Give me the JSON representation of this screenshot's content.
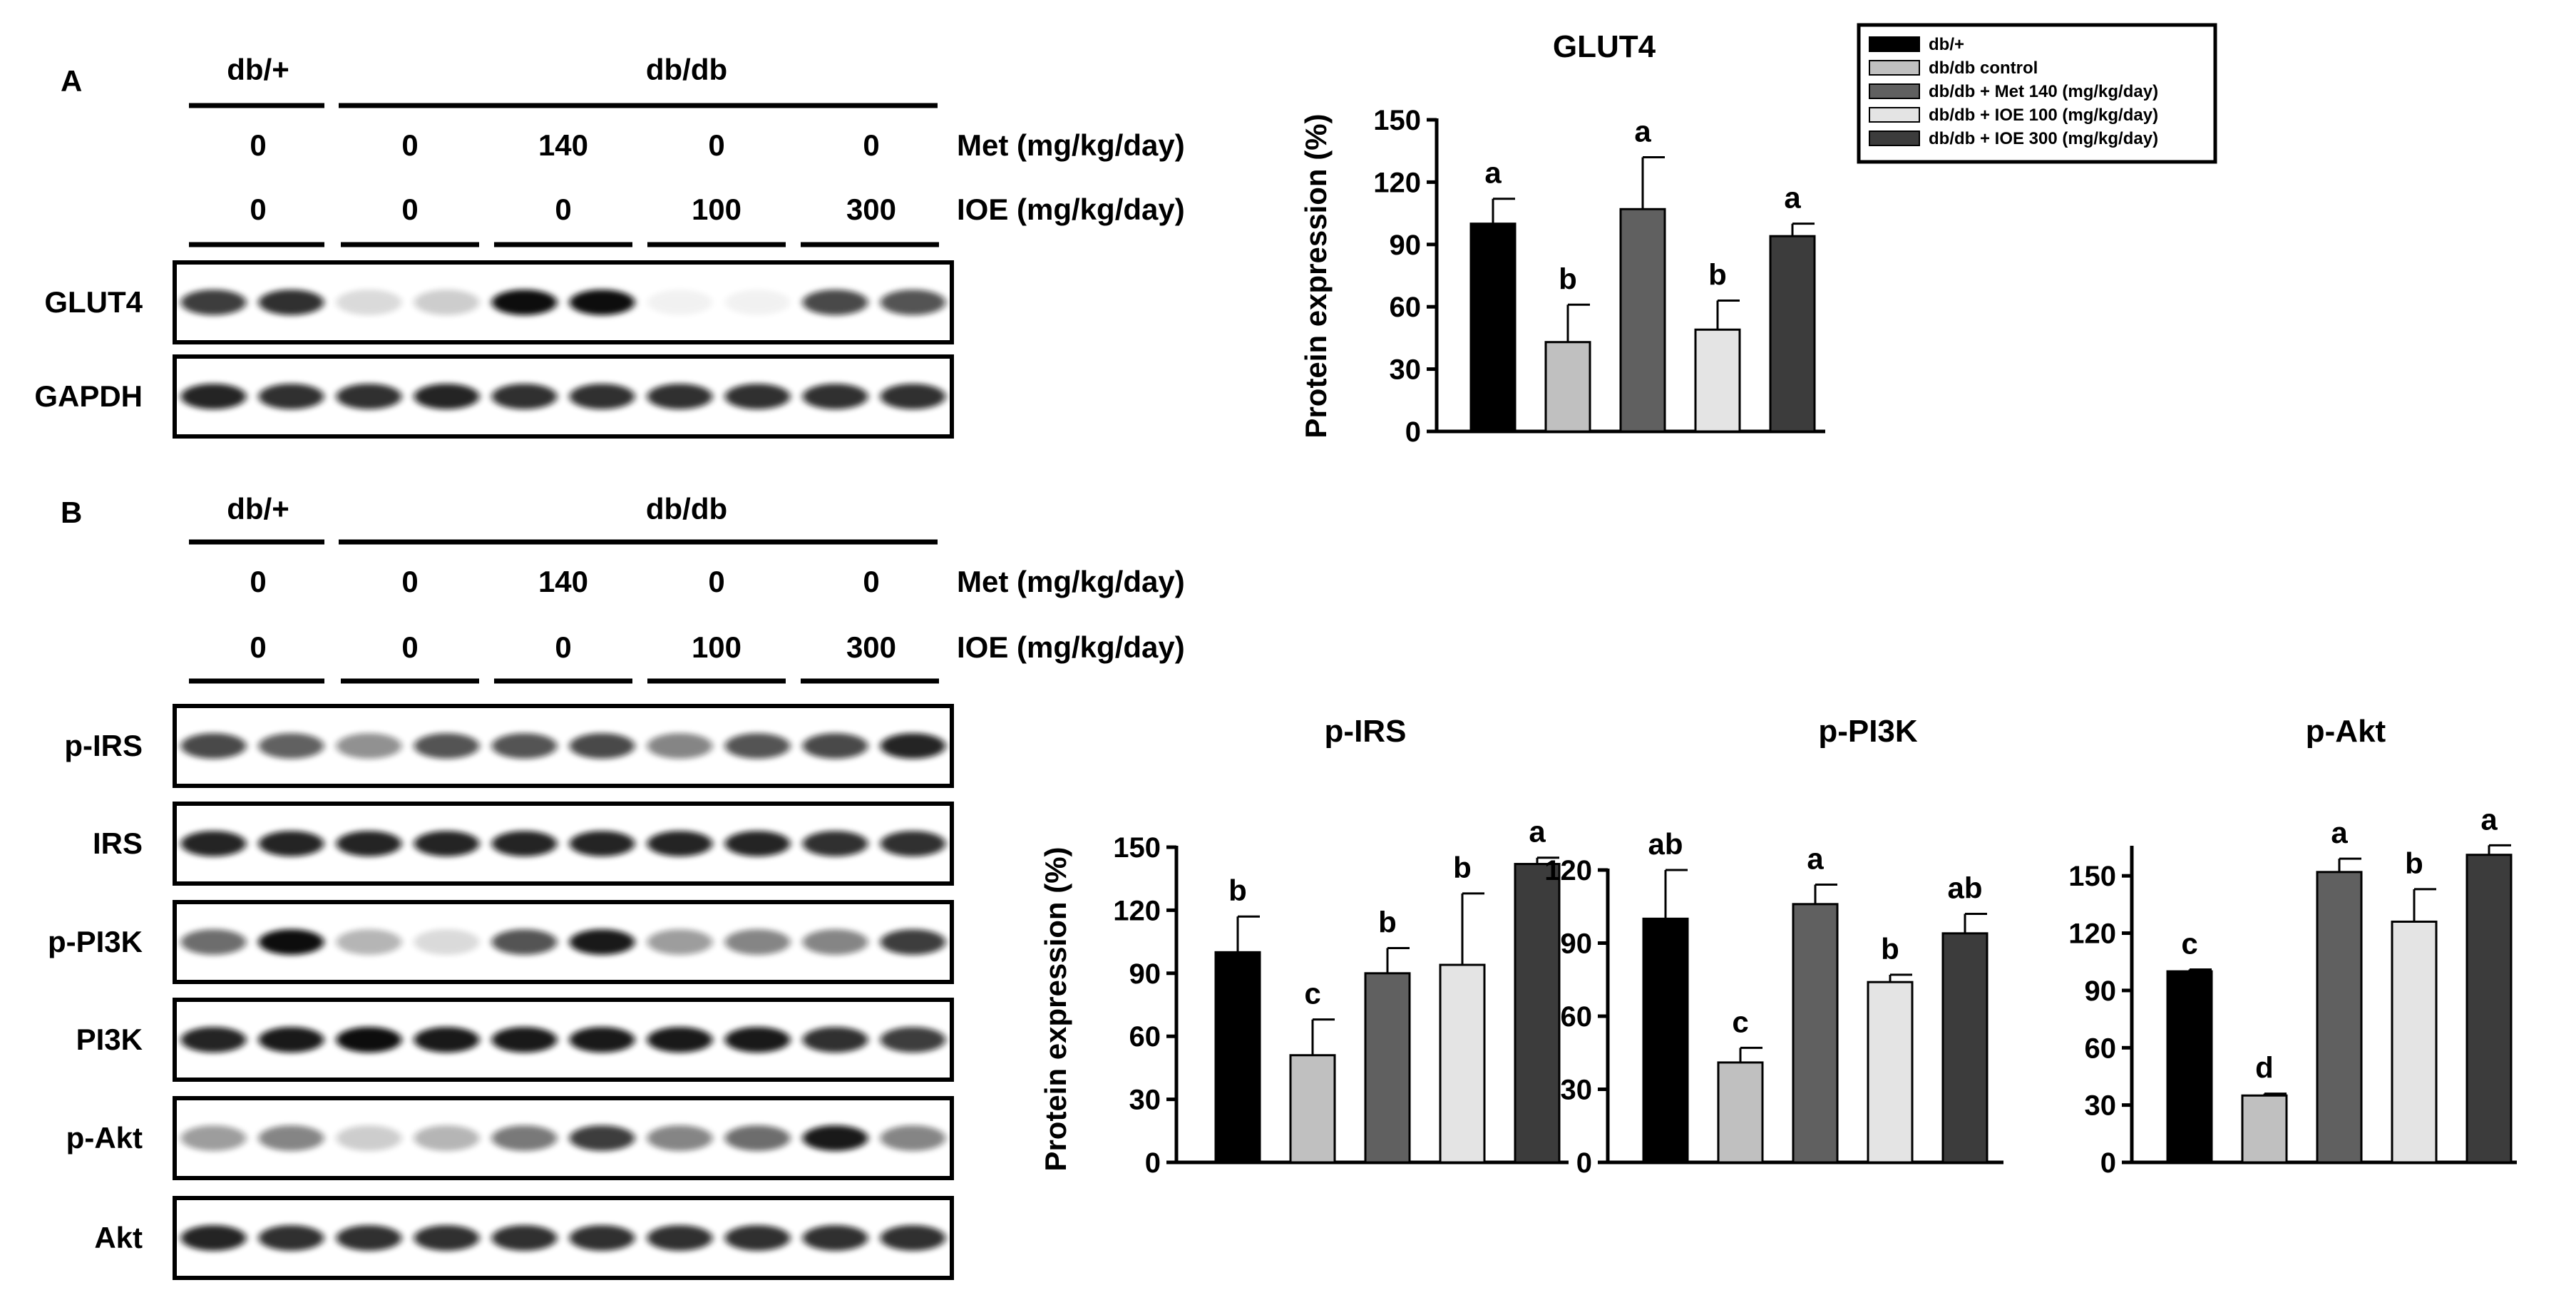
{
  "panels": {
    "A": {
      "label": "A"
    },
    "B": {
      "label": "B"
    }
  },
  "groups": {
    "ctrl": "db/+",
    "diab": "db/db"
  },
  "doses": {
    "met_label": "Met (mg/kg/day)",
    "ioe_label": "IOE (mg/kg/day)",
    "met": [
      "0",
      "0",
      "140",
      "0",
      "0"
    ],
    "ioe": [
      "0",
      "0",
      "0",
      "100",
      "300"
    ]
  },
  "blots": {
    "A": [
      {
        "label": "GLUT4",
        "intensity": [
          [
            0.8,
            0.85
          ],
          [
            0.15,
            0.2
          ],
          [
            1.0,
            1.0
          ],
          [
            0.05,
            0.05
          ],
          [
            0.75,
            0.7
          ]
        ]
      },
      {
        "label": "GAPDH",
        "intensity": [
          [
            0.9,
            0.85
          ],
          [
            0.85,
            0.9
          ],
          [
            0.85,
            0.85
          ],
          [
            0.85,
            0.85
          ],
          [
            0.85,
            0.85
          ]
        ]
      }
    ],
    "B": [
      {
        "label": "p-IRS",
        "intensity": [
          [
            0.75,
            0.65
          ],
          [
            0.45,
            0.7
          ],
          [
            0.7,
            0.75
          ],
          [
            0.5,
            0.7
          ],
          [
            0.75,
            0.9
          ]
        ]
      },
      {
        "label": "IRS",
        "intensity": [
          [
            0.9,
            0.9
          ],
          [
            0.9,
            0.9
          ],
          [
            0.9,
            0.9
          ],
          [
            0.9,
            0.9
          ],
          [
            0.85,
            0.85
          ]
        ]
      },
      {
        "label": "p-PI3K",
        "intensity": [
          [
            0.6,
            1.0
          ],
          [
            0.3,
            0.15
          ],
          [
            0.7,
            0.95
          ],
          [
            0.4,
            0.5
          ],
          [
            0.5,
            0.8
          ]
        ]
      },
      {
        "label": "PI3K",
        "intensity": [
          [
            0.9,
            0.95
          ],
          [
            1.0,
            0.95
          ],
          [
            0.95,
            0.95
          ],
          [
            0.95,
            0.95
          ],
          [
            0.85,
            0.8
          ]
        ]
      },
      {
        "label": "p-Akt",
        "intensity": [
          [
            0.4,
            0.5
          ],
          [
            0.2,
            0.3
          ],
          [
            0.55,
            0.8
          ],
          [
            0.5,
            0.6
          ],
          [
            0.95,
            0.5
          ]
        ]
      },
      {
        "label": "Akt",
        "intensity": [
          [
            0.9,
            0.85
          ],
          [
            0.85,
            0.85
          ],
          [
            0.85,
            0.85
          ],
          [
            0.85,
            0.85
          ],
          [
            0.85,
            0.85
          ]
        ]
      }
    ]
  },
  "legend": {
    "entries": [
      {
        "label": "db/+",
        "color": "#000000"
      },
      {
        "label": "db/db  control",
        "color": "#c0c0c0"
      },
      {
        "label": "db/db  + Met 140 (mg/kg/day)",
        "color": "#606060"
      },
      {
        "label": "db/db  + IOE  100 (mg/kg/day)",
        "color": "#e4e4e4"
      },
      {
        "label": "db/db  + IOE  300 (mg/kg/day)",
        "color": "#3c3c3c"
      }
    ]
  },
  "chart_data": [
    {
      "type": "bar",
      "title": "GLUT4",
      "ylabel": "Protein expression (%)",
      "xlabel": "",
      "ylim": [
        0,
        150
      ],
      "yticks": [
        0,
        30,
        60,
        90,
        120,
        150
      ],
      "categories": [
        "db/+",
        "db/db  control",
        "db/db  + Met 140 (mg/kg/day)",
        "db/db  + IOE  100 (mg/kg/day)",
        "db/db  + IOE  300 (mg/kg/day)"
      ],
      "values": [
        100,
        43,
        107,
        49,
        94
      ],
      "errors": [
        12,
        18,
        25,
        14,
        6
      ],
      "labels": [
        "a",
        "b",
        "a",
        "b",
        "a"
      ],
      "colors": [
        "#000000",
        "#c0c0c0",
        "#606060",
        "#e4e4e4",
        "#3c3c3c"
      ],
      "grid": false
    },
    {
      "type": "bar",
      "title": "p-IRS",
      "ylabel": "Protein expression (%)",
      "xlabel": "",
      "ylim": [
        0,
        150
      ],
      "yticks": [
        0,
        30,
        60,
        90,
        120,
        150
      ],
      "categories": [
        "db/+",
        "db/db  control",
        "db/db  + Met 140 (mg/kg/day)",
        "db/db  + IOE  100 (mg/kg/day)",
        "db/db  + IOE  300 (mg/kg/day)"
      ],
      "values": [
        100,
        51,
        90,
        94,
        142
      ],
      "errors": [
        17,
        17,
        12,
        34,
        3
      ],
      "labels": [
        "b",
        "c",
        "b",
        "b",
        "a"
      ],
      "colors": [
        "#000000",
        "#c0c0c0",
        "#606060",
        "#e4e4e4",
        "#3c3c3c"
      ],
      "grid": false
    },
    {
      "type": "bar",
      "title": "p-PI3K",
      "ylabel": "",
      "xlabel": "",
      "ylim": [
        0,
        120
      ],
      "yticks": [
        0,
        30,
        60,
        90,
        120
      ],
      "categories": [
        "db/+",
        "db/db  control",
        "db/db  + Met 140 (mg/kg/day)",
        "db/db  + IOE  100 (mg/kg/day)",
        "db/db  + IOE  300 (mg/kg/day)"
      ],
      "values": [
        100,
        41,
        106,
        74,
        94
      ],
      "errors": [
        20,
        6,
        8,
        3,
        8
      ],
      "labels": [
        "ab",
        "c",
        "a",
        "b",
        "ab"
      ],
      "colors": [
        "#000000",
        "#c0c0c0",
        "#606060",
        "#e4e4e4",
        "#3c3c3c"
      ],
      "grid": false
    },
    {
      "type": "bar",
      "title": "p-Akt",
      "ylabel": "",
      "xlabel": "",
      "ylim": [
        0,
        165
      ],
      "yticks": [
        0,
        30,
        60,
        90,
        120,
        150
      ],
      "categories": [
        "db/+",
        "db/db  control",
        "db/db  + Met 140 (mg/kg/day)",
        "db/db  + IOE  100 (mg/kg/day)",
        "db/db  + IOE  300 (mg/kg/day)"
      ],
      "values": [
        100,
        35,
        152,
        126,
        161
      ],
      "errors": [
        1,
        1,
        7,
        17,
        5
      ],
      "labels": [
        "c",
        "d",
        "a",
        "b",
        "a"
      ],
      "colors": [
        "#000000",
        "#c0c0c0",
        "#606060",
        "#e4e4e4",
        "#3c3c3c"
      ],
      "grid": false
    }
  ]
}
